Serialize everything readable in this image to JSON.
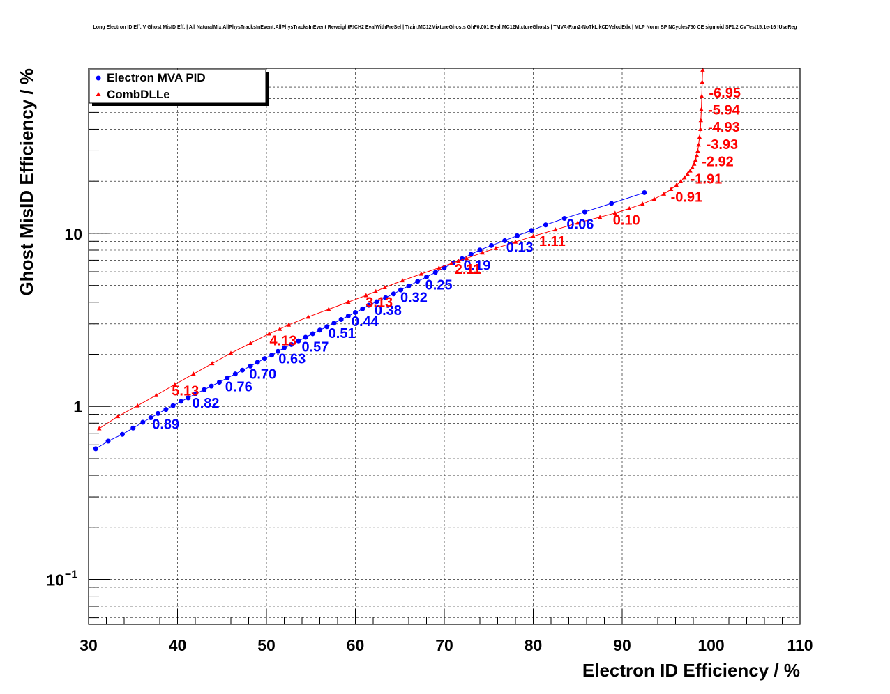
{
  "chart_data": {
    "type": "line",
    "title": "Long Electron ID Eff. V Ghost MisID Eff. | All NaturalMix AllPhysTracksInEvent:AllPhysTracksInEvent ReweightRICH2 EvalWithPreSel | Train:MC12MixtureGhosts GhF0.001 Eval:MC12MixtureGhosts | TMVA-Run2-NoTkLikCDVelodEdx | MLP Norm BP NCycles750 CE sigmoid SF1.2 CVTest15:1e-16 !UseReg",
    "xlabel": "Electron ID Efficiency / %",
    "ylabel": "Ghost MisID Efficiency / %",
    "xlim": [
      30,
      110
    ],
    "ylim": [
      0.055,
      90
    ],
    "yscale": "log",
    "grid": true,
    "legend_position": "top-left",
    "x_ticks": [
      {
        "value": 30,
        "label": "30"
      },
      {
        "value": 40,
        "label": "40"
      },
      {
        "value": 50,
        "label": "50"
      },
      {
        "value": 60,
        "label": "60"
      },
      {
        "value": 70,
        "label": "70"
      },
      {
        "value": 80,
        "label": "80"
      },
      {
        "value": 90,
        "label": "90"
      },
      {
        "value": 100,
        "label": "100"
      },
      {
        "value": 110,
        "label": "110"
      }
    ],
    "y_ticks": [
      {
        "value": 0.1,
        "label": "10",
        "sup": "−1"
      },
      {
        "value": 1,
        "label": "1",
        "sup": ""
      },
      {
        "value": 10,
        "label": "10",
        "sup": ""
      }
    ],
    "series": [
      {
        "name": "Electron MVA PID",
        "color": "#0000ff",
        "marker": "circle",
        "points": [
          [
            30.8,
            0.57
          ],
          [
            32.2,
            0.63
          ],
          [
            33.8,
            0.69
          ],
          [
            35.0,
            0.75
          ],
          [
            36.1,
            0.81
          ],
          [
            37.0,
            0.86
          ],
          [
            37.8,
            0.91
          ],
          [
            38.7,
            0.96
          ],
          [
            39.5,
            1.01
          ],
          [
            40.4,
            1.07
          ],
          [
            41.2,
            1.12
          ],
          [
            42.0,
            1.18
          ],
          [
            43.0,
            1.25
          ],
          [
            43.8,
            1.31
          ],
          [
            44.7,
            1.38
          ],
          [
            45.6,
            1.46
          ],
          [
            46.5,
            1.54
          ],
          [
            47.3,
            1.62
          ],
          [
            48.2,
            1.71
          ],
          [
            49.0,
            1.8
          ],
          [
            49.8,
            1.89
          ],
          [
            50.6,
            1.98
          ],
          [
            51.3,
            2.08
          ],
          [
            52.0,
            2.18
          ],
          [
            52.8,
            2.28
          ],
          [
            53.6,
            2.39
          ],
          [
            54.4,
            2.51
          ],
          [
            55.2,
            2.63
          ],
          [
            56.0,
            2.76
          ],
          [
            56.8,
            2.89
          ],
          [
            57.6,
            3.03
          ],
          [
            58.4,
            3.18
          ],
          [
            59.2,
            3.33
          ],
          [
            60.0,
            3.49
          ],
          [
            60.8,
            3.66
          ],
          [
            61.5,
            3.84
          ],
          [
            62.4,
            4.03
          ],
          [
            63.4,
            4.25
          ],
          [
            64.3,
            4.47
          ],
          [
            65.1,
            4.71
          ],
          [
            66.0,
            4.97
          ],
          [
            67.0,
            5.28
          ],
          [
            68.0,
            5.6
          ],
          [
            69.0,
            5.95
          ],
          [
            70.0,
            6.33
          ],
          [
            71.0,
            6.73
          ],
          [
            72.0,
            7.14
          ],
          [
            73.0,
            7.57
          ],
          [
            74.0,
            8.02
          ],
          [
            75.3,
            8.51
          ],
          [
            76.8,
            9.08
          ],
          [
            78.2,
            9.69
          ],
          [
            79.8,
            10.4
          ],
          [
            81.4,
            11.2
          ],
          [
            83.5,
            12.2
          ],
          [
            85.8,
            13.3
          ],
          [
            88.8,
            14.9
          ],
          [
            92.5,
            17.2
          ]
        ],
        "annotations": [
          {
            "label": "0.89",
            "x": 37.0,
            "y": 0.86
          },
          {
            "label": "0.82",
            "x": 41.5,
            "y": 1.14
          },
          {
            "label": "0.76",
            "x": 45.2,
            "y": 1.42
          },
          {
            "label": "0.70",
            "x": 47.9,
            "y": 1.68
          },
          {
            "label": "0.63",
            "x": 51.2,
            "y": 2.06
          },
          {
            "label": "0.57",
            "x": 53.8,
            "y": 2.41
          },
          {
            "label": "0.51",
            "x": 56.8,
            "y": 2.89
          },
          {
            "label": "0.44",
            "x": 59.4,
            "y": 3.38
          },
          {
            "label": "0.38",
            "x": 62.0,
            "y": 3.91
          },
          {
            "label": "0.32",
            "x": 64.9,
            "y": 4.65
          },
          {
            "label": "0.25",
            "x": 67.7,
            "y": 5.49
          },
          {
            "label": "0.19",
            "x": 72.0,
            "y": 7.14
          },
          {
            "label": "0.13",
            "x": 76.8,
            "y": 9.08
          },
          {
            "label": "0.06",
            "x": 83.6,
            "y": 12.3
          }
        ]
      },
      {
        "name": "CombDLLe",
        "color": "#ff0000",
        "marker": "triangle",
        "points": [
          [
            31.2,
            0.745
          ],
          [
            33.3,
            0.875
          ],
          [
            35.5,
            1.01
          ],
          [
            37.6,
            1.16
          ],
          [
            39.7,
            1.34
          ],
          [
            41.8,
            1.54
          ],
          [
            43.9,
            1.77
          ],
          [
            46.0,
            2.03
          ],
          [
            48.2,
            2.32
          ],
          [
            50.3,
            2.63
          ],
          [
            51.5,
            2.8
          ],
          [
            52.5,
            2.96
          ],
          [
            54.7,
            3.29
          ],
          [
            57.0,
            3.64
          ],
          [
            59.2,
            4.01
          ],
          [
            61.2,
            4.38
          ],
          [
            62.3,
            4.62
          ],
          [
            63.3,
            4.87
          ],
          [
            65.3,
            5.34
          ],
          [
            67.4,
            5.83
          ],
          [
            69.4,
            6.32
          ],
          [
            70.8,
            6.7
          ],
          [
            71.6,
            6.93
          ],
          [
            72.5,
            7.18
          ],
          [
            74.3,
            7.73
          ],
          [
            75.8,
            8.2
          ],
          [
            78.0,
            8.92
          ],
          [
            80.0,
            9.63
          ],
          [
            82.5,
            10.5
          ],
          [
            85.0,
            11.5
          ],
          [
            87.5,
            12.4
          ],
          [
            89.2,
            13.1
          ],
          [
            90.8,
            13.9
          ],
          [
            92.3,
            14.8
          ],
          [
            93.6,
            15.8
          ],
          [
            94.7,
            16.9
          ],
          [
            95.5,
            18.0
          ],
          [
            96.1,
            19.0
          ],
          [
            96.6,
            20.0
          ],
          [
            97.0,
            21.0
          ],
          [
            97.35,
            22.0
          ],
          [
            97.65,
            23.0
          ],
          [
            97.9,
            24.0
          ],
          [
            98.1,
            25.2
          ],
          [
            98.25,
            26.6
          ],
          [
            98.4,
            28.2
          ],
          [
            98.5,
            30.0
          ],
          [
            98.6,
            32.5
          ],
          [
            98.7,
            36.0
          ],
          [
            98.8,
            40.0
          ],
          [
            98.85,
            45.0
          ],
          [
            98.9,
            52.0
          ],
          [
            98.95,
            62.0
          ],
          [
            99.0,
            75.0
          ],
          [
            99.05,
            88.0
          ]
        ],
        "annotations": [
          {
            "label": "5.13",
            "x": 39.2,
            "y": 1.34
          },
          {
            "label": "4.13",
            "x": 50.2,
            "y": 2.62
          },
          {
            "label": "3.13",
            "x": 61.0,
            "y": 4.35
          },
          {
            "label": "2.11",
            "x": 71.0,
            "y": 6.76
          },
          {
            "label": "1.11",
            "x": 80.5,
            "y": 9.8
          },
          {
            "label": "0.10",
            "x": 88.8,
            "y": 13.0
          },
          {
            "label": "-0.91",
            "x": 95.3,
            "y": 17.7
          },
          {
            "label": "-1.91",
            "x": 97.5,
            "y": 22.5
          },
          {
            "label": "-2.92",
            "x": 98.8,
            "y": 28.4
          },
          {
            "label": "-3.93",
            "x": 99.3,
            "y": 35.6
          },
          {
            "label": "-4.93",
            "x": 99.5,
            "y": 44.8
          },
          {
            "label": "-5.94",
            "x": 99.5,
            "y": 56.3
          },
          {
            "label": "-6.95",
            "x": 99.6,
            "y": 70.8
          }
        ]
      }
    ]
  }
}
